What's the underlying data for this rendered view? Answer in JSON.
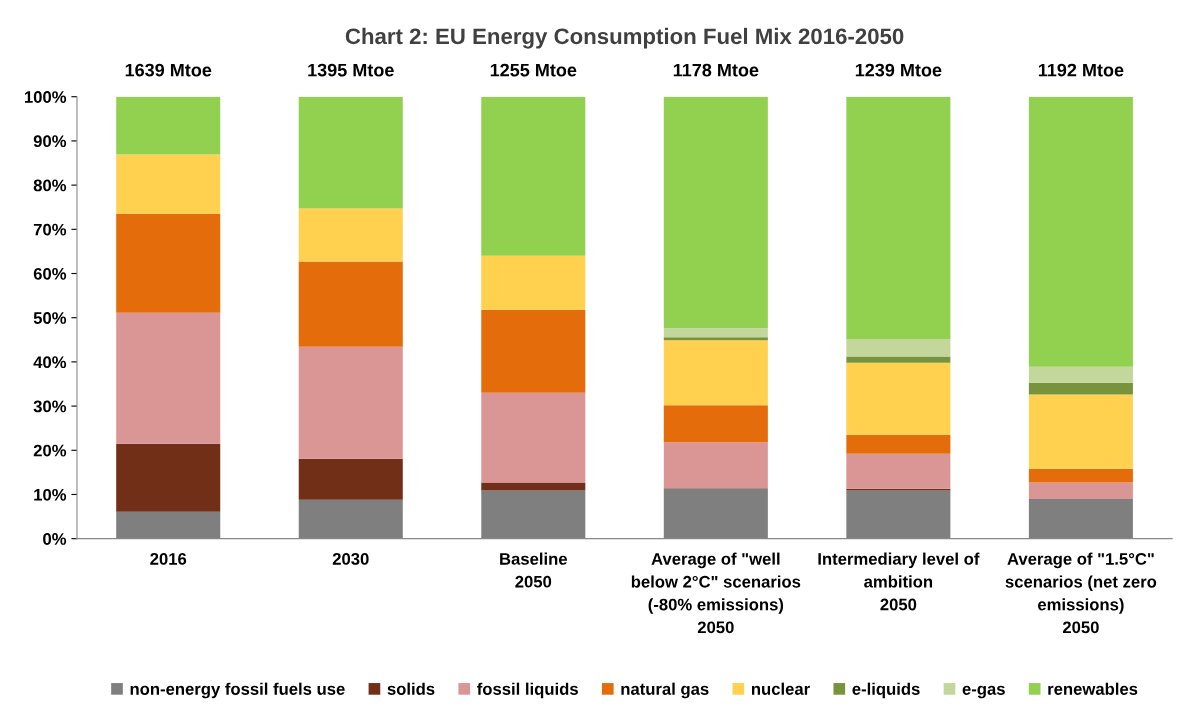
{
  "chart_data": {
    "type": "bar",
    "title": "Chart 2: EU Energy Consumption Fuel Mix 2016-2050",
    "categories": [
      "2016",
      "2030",
      "Baseline\n2050",
      "Average of \"well\nbelow 2°C\" scenarios\n(-80% emissions)\n2050",
      "Intermediary level of\nambition\n2050",
      "Average of \"1.5°C\"\nscenarios (net zero\nemissions)\n2050"
    ],
    "stacked": true,
    "series": [
      {
        "name": "non-energy fossil fuels use",
        "color": "#7f7f7f",
        "values": [
          6.1,
          8.8,
          10.9,
          11.3,
          10.9,
          9.0
        ]
      },
      {
        "name": "solids",
        "color": "#722f18",
        "values": [
          15.4,
          9.3,
          1.8,
          0.1,
          0.4,
          0
        ]
      },
      {
        "name": "fossil liquids",
        "color": "#da9694",
        "values": [
          29.6,
          25.3,
          20.3,
          10.4,
          7.9,
          3.7
        ]
      },
      {
        "name": "natural gas",
        "color": "#e46c0a",
        "values": [
          22.4,
          19.3,
          18.8,
          8.4,
          4.3,
          3.1
        ]
      },
      {
        "name": "nuclear",
        "color": "#ffd14f",
        "values": [
          13.4,
          12.0,
          12.2,
          14.7,
          16.3,
          16.8
        ]
      },
      {
        "name": "e-liquids",
        "color": "#77933c",
        "values": [
          0,
          0,
          0,
          0.7,
          1.4,
          2.7
        ]
      },
      {
        "name": "e-gas",
        "color": "#c3d69b",
        "values": [
          0,
          0,
          0,
          2.0,
          4.0,
          3.6
        ]
      },
      {
        "name": "renewables",
        "color": "#92d050",
        "values": [
          13.1,
          25.3,
          36.0,
          52.4,
          54.8,
          61.1
        ]
      }
    ],
    "annotations": [
      {
        "text": "1639 Mtoe",
        "x": "2016",
        "y": 100
      },
      {
        "text": "1395 Mtoe",
        "x": "2030",
        "y": 100
      },
      {
        "text": "1255 Mtoe",
        "x": "Baseline\n2050",
        "y": 100
      },
      {
        "text": "1178 Mtoe",
        "x": "Average of \"well\nbelow 2°C\" scenarios\n(-80% emissions)\n2050",
        "y": 100
      },
      {
        "text": "1239 Mtoe",
        "x": "Intermediary level of\nambition\n2050",
        "y": 100
      },
      {
        "text": "1192 Mtoe",
        "x": "Average of \"1.5°C\"\nscenarios (net zero\nemissions)\n2050",
        "y": 100
      }
    ],
    "ylim": [
      0,
      100
    ],
    "yticks": [
      {
        "value": 0,
        "label": "0%"
      },
      {
        "value": 10,
        "label": "10%"
      },
      {
        "value": 20,
        "label": "20%"
      },
      {
        "value": 30,
        "label": "30%"
      },
      {
        "value": 40,
        "label": "40%"
      },
      {
        "value": 50,
        "label": "50%"
      },
      {
        "value": 60,
        "label": "60%"
      },
      {
        "value": 70,
        "label": "70%"
      },
      {
        "value": 80,
        "label": "80%"
      },
      {
        "value": 90,
        "label": "90%"
      },
      {
        "value": 100,
        "label": "100%"
      }
    ],
    "grid": false,
    "legend": "bottom"
  }
}
